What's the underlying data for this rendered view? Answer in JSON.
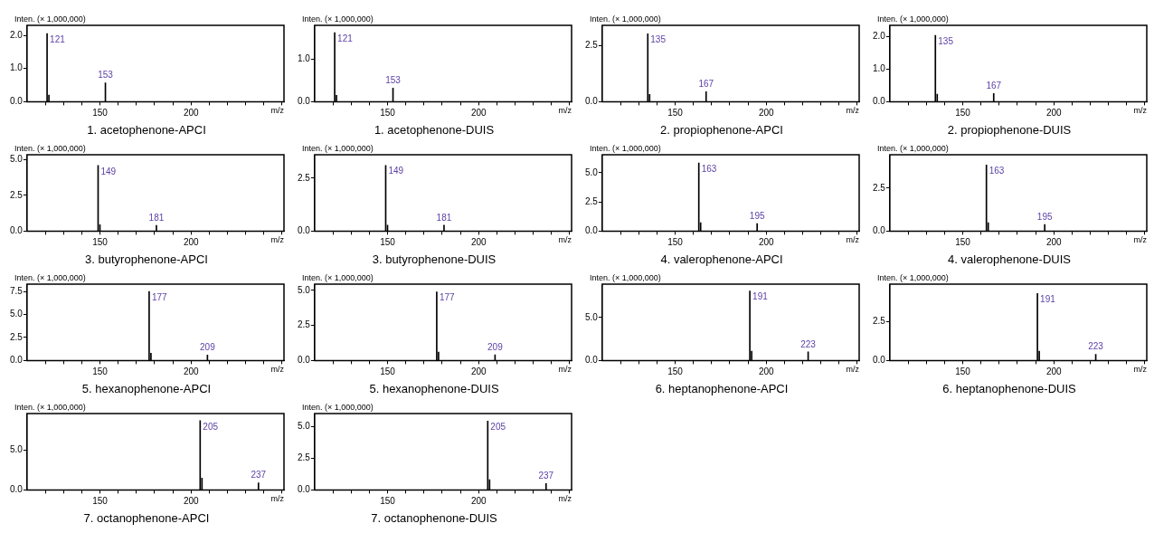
{
  "chart_data": [
    {
      "type": "bar",
      "title": "1. acetophenone-APCI",
      "xlabel": "m/z",
      "ylabel": "Inten. (× 1,000,000)",
      "x": [
        121,
        122,
        153
      ],
      "values": [
        2.05,
        0.2,
        0.57
      ],
      "color": "#000000",
      "xlim": [
        110,
        251
      ],
      "xticks": [
        {
          "value": 120,
          "label": null
        },
        {
          "value": 130,
          "label": null
        },
        {
          "value": 140,
          "label": null
        },
        {
          "value": 150,
          "label": "150"
        },
        {
          "value": 160,
          "label": null
        },
        {
          "value": 170,
          "label": null
        },
        {
          "value": 180,
          "label": null
        },
        {
          "value": 190,
          "label": null
        },
        {
          "value": 200,
          "label": "200"
        },
        {
          "value": 210,
          "label": null
        },
        {
          "value": 220,
          "label": null
        },
        {
          "value": 230,
          "label": null
        },
        {
          "value": 240,
          "label": null
        },
        {
          "value": 250,
          "label": null
        }
      ],
      "ylim": [
        0,
        2.3
      ],
      "yticks": [
        {
          "value": 0,
          "label": "0.0"
        },
        {
          "value": 1,
          "label": "1.0"
        },
        {
          "value": 2,
          "label": "2.0"
        }
      ],
      "annotations": [
        {
          "text": "121",
          "x": 121,
          "y": 2.05
        },
        {
          "text": "153",
          "x": 153,
          "y": 0.57
        }
      ]
    },
    {
      "type": "bar",
      "title": "1. acetophenone-DUIS",
      "xlabel": "m/z",
      "ylabel": "Inten. (× 1,000,000)",
      "x": [
        121,
        122,
        153
      ],
      "values": [
        1.63,
        0.15,
        0.32
      ],
      "color": "#000000",
      "xlim": [
        110,
        251
      ],
      "xticks": [
        {
          "value": 120,
          "label": null
        },
        {
          "value": 130,
          "label": null
        },
        {
          "value": 140,
          "label": null
        },
        {
          "value": 150,
          "label": "150"
        },
        {
          "value": 160,
          "label": null
        },
        {
          "value": 170,
          "label": null
        },
        {
          "value": 180,
          "label": null
        },
        {
          "value": 190,
          "label": null
        },
        {
          "value": 200,
          "label": "200"
        },
        {
          "value": 210,
          "label": null
        },
        {
          "value": 220,
          "label": null
        },
        {
          "value": 230,
          "label": null
        },
        {
          "value": 240,
          "label": null
        },
        {
          "value": 250,
          "label": null
        }
      ],
      "ylim": [
        0,
        1.8
      ],
      "yticks": [
        {
          "value": 0,
          "label": "0.0"
        },
        {
          "value": 1,
          "label": "1.0"
        }
      ],
      "annotations": [
        {
          "text": "121",
          "x": 121,
          "y": 1.63
        },
        {
          "text": "153",
          "x": 153,
          "y": 0.32
        }
      ]
    },
    {
      "type": "bar",
      "title": "2. propiophenone-APCI",
      "xlabel": "m/z",
      "ylabel": "Inten. (× 1,000,000)",
      "x": [
        135,
        136,
        167
      ],
      "values": [
        3.02,
        0.33,
        0.45
      ],
      "color": "#000000",
      "xlim": [
        110,
        251
      ],
      "xticks": [
        {
          "value": 120,
          "label": null
        },
        {
          "value": 130,
          "label": null
        },
        {
          "value": 140,
          "label": null
        },
        {
          "value": 150,
          "label": "150"
        },
        {
          "value": 160,
          "label": null
        },
        {
          "value": 170,
          "label": null
        },
        {
          "value": 180,
          "label": null
        },
        {
          "value": 190,
          "label": null
        },
        {
          "value": 200,
          "label": "200"
        },
        {
          "value": 210,
          "label": null
        },
        {
          "value": 220,
          "label": null
        },
        {
          "value": 230,
          "label": null
        },
        {
          "value": 240,
          "label": null
        },
        {
          "value": 250,
          "label": null
        }
      ],
      "ylim": [
        0,
        3.4
      ],
      "yticks": [
        {
          "value": 0,
          "label": "0.0"
        },
        {
          "value": 2.5,
          "label": "2.5"
        }
      ],
      "annotations": [
        {
          "text": "135",
          "x": 135,
          "y": 3.02
        },
        {
          "text": "167",
          "x": 167,
          "y": 0.45
        }
      ]
    },
    {
      "type": "bar",
      "title": "2. propiophenone-DUIS",
      "xlabel": "m/z",
      "ylabel": "Inten. (× 1,000,000)",
      "x": [
        135,
        136,
        167
      ],
      "values": [
        2.04,
        0.23,
        0.25
      ],
      "color": "#000000",
      "xlim": [
        110,
        251
      ],
      "xticks": [
        {
          "value": 120,
          "label": null
        },
        {
          "value": 130,
          "label": null
        },
        {
          "value": 140,
          "label": null
        },
        {
          "value": 150,
          "label": "150"
        },
        {
          "value": 160,
          "label": null
        },
        {
          "value": 170,
          "label": null
        },
        {
          "value": 180,
          "label": null
        },
        {
          "value": 190,
          "label": null
        },
        {
          "value": 200,
          "label": "200"
        },
        {
          "value": 210,
          "label": null
        },
        {
          "value": 220,
          "label": null
        },
        {
          "value": 230,
          "label": null
        },
        {
          "value": 240,
          "label": null
        },
        {
          "value": 250,
          "label": null
        }
      ],
      "ylim": [
        0,
        2.35
      ],
      "yticks": [
        {
          "value": 0,
          "label": "0.0"
        },
        {
          "value": 1,
          "label": "1.0"
        },
        {
          "value": 2,
          "label": "2.0"
        }
      ],
      "annotations": [
        {
          "text": "135",
          "x": 135,
          "y": 2.04
        },
        {
          "text": "167",
          "x": 167,
          "y": 0.25
        }
      ]
    },
    {
      "type": "bar",
      "title": "3. butyrophenone-APCI",
      "xlabel": "m/z",
      "ylabel": "Inten. (× 1,000,000)",
      "x": [
        149,
        150,
        181
      ],
      "values": [
        4.6,
        0.45,
        0.4
      ],
      "color": "#000000",
      "xlim": [
        110,
        251
      ],
      "xticks": [
        {
          "value": 120,
          "label": null
        },
        {
          "value": 130,
          "label": null
        },
        {
          "value": 140,
          "label": null
        },
        {
          "value": 150,
          "label": "150"
        },
        {
          "value": 160,
          "label": null
        },
        {
          "value": 170,
          "label": null
        },
        {
          "value": 180,
          "label": null
        },
        {
          "value": 190,
          "label": null
        },
        {
          "value": 200,
          "label": "200"
        },
        {
          "value": 210,
          "label": null
        },
        {
          "value": 220,
          "label": null
        },
        {
          "value": 230,
          "label": null
        },
        {
          "value": 240,
          "label": null
        },
        {
          "value": 250,
          "label": null
        }
      ],
      "ylim": [
        0,
        5.35
      ],
      "yticks": [
        {
          "value": 0,
          "label": "0.0"
        },
        {
          "value": 2.5,
          "label": "2.5"
        },
        {
          "value": 5,
          "label": "5.0"
        }
      ],
      "annotations": [
        {
          "text": "149",
          "x": 149,
          "y": 4.6
        },
        {
          "text": "181",
          "x": 181,
          "y": 0.4
        }
      ]
    },
    {
      "type": "bar",
      "title": "3. butyrophenone-DUIS",
      "xlabel": "m/z",
      "ylabel": "Inten. (× 1,000,000)",
      "x": [
        149,
        150,
        181
      ],
      "values": [
        3.1,
        0.28,
        0.28
      ],
      "color": "#000000",
      "xlim": [
        110,
        251
      ],
      "xticks": [
        {
          "value": 120,
          "label": null
        },
        {
          "value": 130,
          "label": null
        },
        {
          "value": 140,
          "label": null
        },
        {
          "value": 150,
          "label": "150"
        },
        {
          "value": 160,
          "label": null
        },
        {
          "value": 170,
          "label": null
        },
        {
          "value": 180,
          "label": null
        },
        {
          "value": 190,
          "label": null
        },
        {
          "value": 200,
          "label": "200"
        },
        {
          "value": 210,
          "label": null
        },
        {
          "value": 220,
          "label": null
        },
        {
          "value": 230,
          "label": null
        },
        {
          "value": 240,
          "label": null
        },
        {
          "value": 250,
          "label": null
        }
      ],
      "ylim": [
        0,
        3.6
      ],
      "yticks": [
        {
          "value": 0,
          "label": "0.0"
        },
        {
          "value": 2.5,
          "label": "2.5"
        }
      ],
      "annotations": [
        {
          "text": "149",
          "x": 149,
          "y": 3.1
        },
        {
          "text": "181",
          "x": 181,
          "y": 0.28
        }
      ]
    },
    {
      "type": "bar",
      "title": "4. valerophenone-APCI",
      "xlabel": "m/z",
      "ylabel": "Inten. (× 1,000,000)",
      "x": [
        163,
        164,
        195
      ],
      "values": [
        5.85,
        0.72,
        0.64
      ],
      "color": "#000000",
      "xlim": [
        110,
        251
      ],
      "xticks": [
        {
          "value": 120,
          "label": null
        },
        {
          "value": 130,
          "label": null
        },
        {
          "value": 140,
          "label": null
        },
        {
          "value": 150,
          "label": "150"
        },
        {
          "value": 160,
          "label": null
        },
        {
          "value": 170,
          "label": null
        },
        {
          "value": 180,
          "label": null
        },
        {
          "value": 190,
          "label": null
        },
        {
          "value": 200,
          "label": "200"
        },
        {
          "value": 210,
          "label": null
        },
        {
          "value": 220,
          "label": null
        },
        {
          "value": 230,
          "label": null
        },
        {
          "value": 240,
          "label": null
        },
        {
          "value": 250,
          "label": null
        }
      ],
      "ylim": [
        0,
        6.55
      ],
      "yticks": [
        {
          "value": 0,
          "label": "0.0"
        },
        {
          "value": 2.5,
          "label": "2.5"
        },
        {
          "value": 5,
          "label": "5.0"
        }
      ],
      "annotations": [
        {
          "text": "163",
          "x": 163,
          "y": 5.85
        },
        {
          "text": "195",
          "x": 195,
          "y": 0.64
        }
      ]
    },
    {
      "type": "bar",
      "title": "4. valerophenone-DUIS",
      "xlabel": "m/z",
      "ylabel": "Inten. (× 1,000,000)",
      "x": [
        163,
        164,
        195
      ],
      "values": [
        3.85,
        0.49,
        0.39
      ],
      "color": "#000000",
      "xlim": [
        110,
        251
      ],
      "xticks": [
        {
          "value": 120,
          "label": null
        },
        {
          "value": 130,
          "label": null
        },
        {
          "value": 140,
          "label": null
        },
        {
          "value": 150,
          "label": "150"
        },
        {
          "value": 160,
          "label": null
        },
        {
          "value": 170,
          "label": null
        },
        {
          "value": 180,
          "label": null
        },
        {
          "value": 190,
          "label": null
        },
        {
          "value": 200,
          "label": "200"
        },
        {
          "value": 210,
          "label": null
        },
        {
          "value": 220,
          "label": null
        },
        {
          "value": 230,
          "label": null
        },
        {
          "value": 240,
          "label": null
        },
        {
          "value": 250,
          "label": null
        }
      ],
      "ylim": [
        0,
        4.45
      ],
      "yticks": [
        {
          "value": 0,
          "label": "0.0"
        },
        {
          "value": 2.5,
          "label": "2.5"
        }
      ],
      "annotations": [
        {
          "text": "163",
          "x": 163,
          "y": 3.85
        },
        {
          "text": "195",
          "x": 195,
          "y": 0.39
        }
      ]
    },
    {
      "type": "bar",
      "title": "5. hexanophenone-APCI",
      "xlabel": "m/z",
      "ylabel": "Inten. (× 1,000,000)",
      "x": [
        177,
        178,
        209
      ],
      "values": [
        7.5,
        0.8,
        0.6
      ],
      "color": "#000000",
      "xlim": [
        110,
        251
      ],
      "xticks": [
        {
          "value": 120,
          "label": null
        },
        {
          "value": 130,
          "label": null
        },
        {
          "value": 140,
          "label": null
        },
        {
          "value": 150,
          "label": "150"
        },
        {
          "value": 160,
          "label": null
        },
        {
          "value": 170,
          "label": null
        },
        {
          "value": 180,
          "label": null
        },
        {
          "value": 190,
          "label": null
        },
        {
          "value": 200,
          "label": "200"
        },
        {
          "value": 210,
          "label": null
        },
        {
          "value": 220,
          "label": null
        },
        {
          "value": 230,
          "label": null
        },
        {
          "value": 240,
          "label": null
        },
        {
          "value": 250,
          "label": null
        }
      ],
      "ylim": [
        0,
        8.3
      ],
      "yticks": [
        {
          "value": 0,
          "label": "0.0"
        },
        {
          "value": 2.5,
          "label": "2.5"
        },
        {
          "value": 5,
          "label": "5.0"
        },
        {
          "value": 7.5,
          "label": "7.5"
        }
      ],
      "annotations": [
        {
          "text": "177",
          "x": 177,
          "y": 7.5
        },
        {
          "text": "209",
          "x": 209,
          "y": 0.6
        }
      ]
    },
    {
      "type": "bar",
      "title": "5. hexanophenone-DUIS",
      "xlabel": "m/z",
      "ylabel": "Inten. (× 1,000,000)",
      "x": [
        177,
        178,
        209
      ],
      "values": [
        4.9,
        0.6,
        0.41
      ],
      "color": "#000000",
      "xlim": [
        110,
        251
      ],
      "xticks": [
        {
          "value": 120,
          "label": null
        },
        {
          "value": 130,
          "label": null
        },
        {
          "value": 140,
          "label": null
        },
        {
          "value": 150,
          "label": "150"
        },
        {
          "value": 160,
          "label": null
        },
        {
          "value": 170,
          "label": null
        },
        {
          "value": 180,
          "label": null
        },
        {
          "value": 190,
          "label": null
        },
        {
          "value": 200,
          "label": "200"
        },
        {
          "value": 210,
          "label": null
        },
        {
          "value": 220,
          "label": null
        },
        {
          "value": 230,
          "label": null
        },
        {
          "value": 240,
          "label": null
        },
        {
          "value": 250,
          "label": null
        }
      ],
      "ylim": [
        0,
        5.45
      ],
      "yticks": [
        {
          "value": 0,
          "label": "0.0"
        },
        {
          "value": 2.5,
          "label": "2.5"
        },
        {
          "value": 5,
          "label": "5.0"
        }
      ],
      "annotations": [
        {
          "text": "177",
          "x": 177,
          "y": 4.9
        },
        {
          "text": "209",
          "x": 209,
          "y": 0.41
        }
      ]
    },
    {
      "type": "bar",
      "title": "6. heptanophenone-APCI",
      "xlabel": "m/z",
      "ylabel": "Inten. (× 1,000,000)",
      "x": [
        191,
        192,
        223
      ],
      "values": [
        8.1,
        1.1,
        1
      ],
      "color": "#000000",
      "xlim": [
        110,
        251
      ],
      "xticks": [
        {
          "value": 120,
          "label": null
        },
        {
          "value": 130,
          "label": null
        },
        {
          "value": 140,
          "label": null
        },
        {
          "value": 150,
          "label": "150"
        },
        {
          "value": 160,
          "label": null
        },
        {
          "value": 170,
          "label": null
        },
        {
          "value": 180,
          "label": null
        },
        {
          "value": 190,
          "label": null
        },
        {
          "value": 200,
          "label": "200"
        },
        {
          "value": 210,
          "label": null
        },
        {
          "value": 220,
          "label": null
        },
        {
          "value": 230,
          "label": null
        },
        {
          "value": 240,
          "label": null
        },
        {
          "value": 250,
          "label": null
        }
      ],
      "ylim": [
        0,
        8.9
      ],
      "yticks": [
        {
          "value": 0,
          "label": "0.0"
        },
        {
          "value": 5,
          "label": "5.0"
        }
      ],
      "annotations": [
        {
          "text": "191",
          "x": 191,
          "y": 8.1
        },
        {
          "text": "223",
          "x": 223,
          "y": 1
        }
      ]
    },
    {
      "type": "bar",
      "title": "6. heptanophenone-DUIS",
      "xlabel": "m/z",
      "ylabel": "Inten. (× 1,000,000)",
      "x": [
        191,
        192,
        223
      ],
      "values": [
        4.3,
        0.6,
        0.39
      ],
      "color": "#000000",
      "xlim": [
        110,
        251
      ],
      "xticks": [
        {
          "value": 120,
          "label": null
        },
        {
          "value": 130,
          "label": null
        },
        {
          "value": 140,
          "label": null
        },
        {
          "value": 150,
          "label": "150"
        },
        {
          "value": 160,
          "label": null
        },
        {
          "value": 170,
          "label": null
        },
        {
          "value": 180,
          "label": null
        },
        {
          "value": 190,
          "label": null
        },
        {
          "value": 200,
          "label": "200"
        },
        {
          "value": 210,
          "label": null
        },
        {
          "value": 220,
          "label": null
        },
        {
          "value": 230,
          "label": null
        },
        {
          "value": 240,
          "label": null
        },
        {
          "value": 250,
          "label": null
        }
      ],
      "ylim": [
        0,
        4.9
      ],
      "yticks": [
        {
          "value": 0,
          "label": "0.0"
        },
        {
          "value": 2.5,
          "label": "2.5"
        }
      ],
      "annotations": [
        {
          "text": "191",
          "x": 191,
          "y": 4.3
        },
        {
          "text": "223",
          "x": 223,
          "y": 0.39
        }
      ]
    },
    {
      "type": "bar",
      "title": "7. octanophenone-APCI",
      "xlabel": "m/z",
      "ylabel": "Inten. (× 1,000,000)",
      "x": [
        205,
        206,
        237
      ],
      "values": [
        8.7,
        1.5,
        0.9
      ],
      "color": "#000000",
      "xlim": [
        110,
        251
      ],
      "xticks": [
        {
          "value": 120,
          "label": null
        },
        {
          "value": 130,
          "label": null
        },
        {
          "value": 140,
          "label": null
        },
        {
          "value": 150,
          "label": "150"
        },
        {
          "value": 160,
          "label": null
        },
        {
          "value": 170,
          "label": null
        },
        {
          "value": 180,
          "label": null
        },
        {
          "value": 190,
          "label": null
        },
        {
          "value": 200,
          "label": "200"
        },
        {
          "value": 210,
          "label": null
        },
        {
          "value": 220,
          "label": null
        },
        {
          "value": 230,
          "label": null
        },
        {
          "value": 240,
          "label": null
        },
        {
          "value": 250,
          "label": null
        }
      ],
      "ylim": [
        0,
        9.6
      ],
      "yticks": [
        {
          "value": 0,
          "label": "0.0"
        },
        {
          "value": 5,
          "label": "5.0"
        }
      ],
      "annotations": [
        {
          "text": "205",
          "x": 205,
          "y": 8.7
        },
        {
          "text": "237",
          "x": 237,
          "y": 0.9
        }
      ]
    },
    {
      "type": "bar",
      "title": "7. octanophenone-DUIS",
      "xlabel": "m/z",
      "ylabel": "Inten. (× 1,000,000)",
      "x": [
        205,
        206,
        237
      ],
      "values": [
        5.4,
        0.8,
        0.5
      ],
      "color": "#000000",
      "xlim": [
        110,
        251
      ],
      "xticks": [
        {
          "value": 120,
          "label": null
        },
        {
          "value": 130,
          "label": null
        },
        {
          "value": 140,
          "label": null
        },
        {
          "value": 150,
          "label": "150"
        },
        {
          "value": 160,
          "label": null
        },
        {
          "value": 170,
          "label": null
        },
        {
          "value": 180,
          "label": null
        },
        {
          "value": 190,
          "label": null
        },
        {
          "value": 200,
          "label": "200"
        },
        {
          "value": 210,
          "label": null
        },
        {
          "value": 220,
          "label": null
        },
        {
          "value": 230,
          "label": null
        },
        {
          "value": 240,
          "label": null
        },
        {
          "value": 250,
          "label": null
        }
      ],
      "ylim": [
        0,
        6
      ],
      "yticks": [
        {
          "value": 0,
          "label": "0.0"
        },
        {
          "value": 2.5,
          "label": "2.5"
        },
        {
          "value": 5,
          "label": "5.0"
        }
      ],
      "annotations": [
        {
          "text": "205",
          "x": 205,
          "y": 5.4
        },
        {
          "text": "237",
          "x": 237,
          "y": 0.5
        }
      ]
    }
  ]
}
